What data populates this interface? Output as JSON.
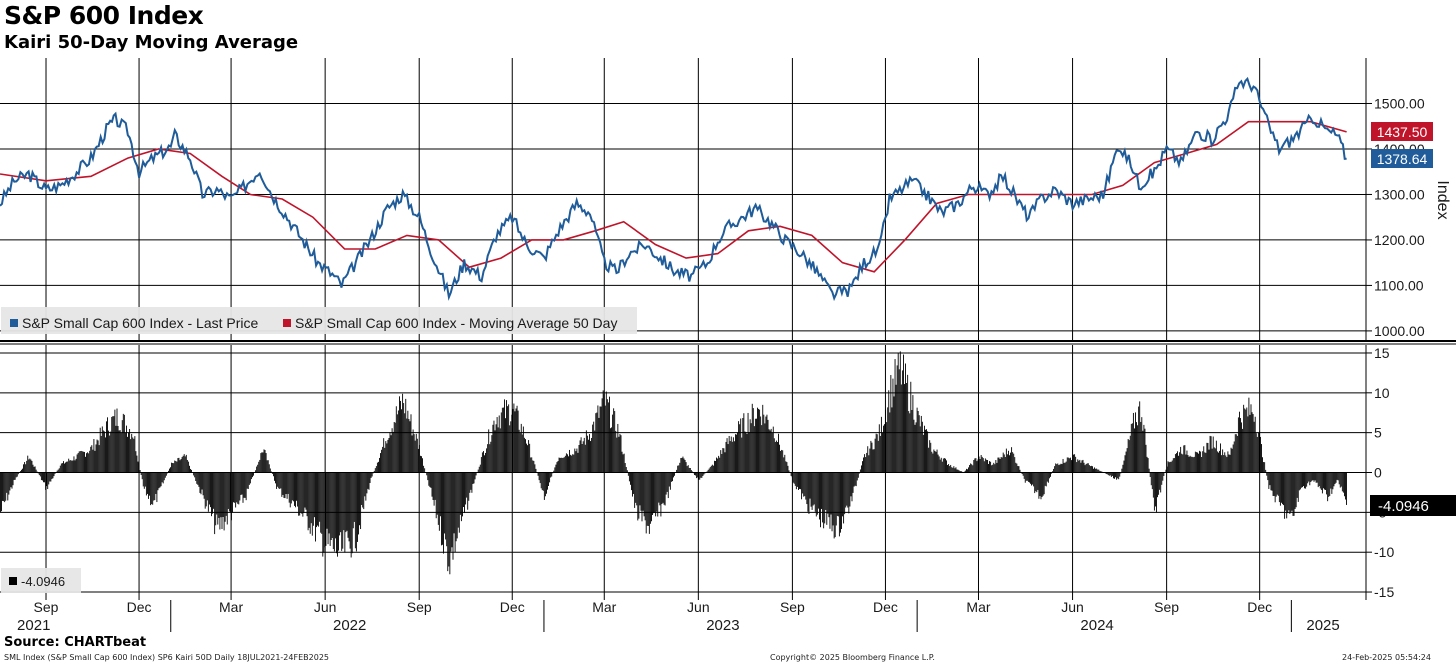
{
  "header": {
    "title": "S&P 600 Index",
    "subtitle": "Kairi 50-Day Moving Average"
  },
  "footer": {
    "source": "Source: CHARTbeat",
    "description": "SML Index (S&P Small Cap 600 Index) SP6 Kairi 50D  Daily 18JUL2021-24FEB2025",
    "copyright": "Copyright© 2025 Bloomberg Finance L.P.",
    "timestamp": "24-Feb-2025 05:54:24"
  },
  "colors": {
    "price": "#1f5c99",
    "moving_average": "#c0142a",
    "kairi": "#000000",
    "grid": "#000000"
  },
  "chart_data": [
    {
      "type": "line",
      "ylabel": "Index",
      "ylim": [
        980,
        1600
      ],
      "yticks": [
        1000,
        1100,
        1200,
        1300,
        1400,
        1500
      ],
      "ytick_labels": [
        "1000.00",
        "1100.00",
        "1200.00",
        "1300.00",
        "1400.00",
        "1500.00"
      ],
      "grid": true,
      "legend_position": "bottom-left",
      "last_value_labels": [
        "1437.50",
        "1378.64"
      ],
      "x_month_labels": [
        "Sep",
        "Dec",
        "Mar",
        "Jun",
        "Sep",
        "Dec",
        "Mar",
        "Jun",
        "Sep",
        "Dec",
        "Mar",
        "Jun",
        "Sep",
        "Dec"
      ],
      "x_year_labels": [
        "2021",
        "2022",
        "2023",
        "2024",
        "2025"
      ],
      "series": [
        {
          "name": "S&P Small Cap 600 Index - Last Price",
          "x": [
            "2021-07-18",
            "2021-08-01",
            "2021-08-15",
            "2021-09-01",
            "2021-09-15",
            "2021-10-01",
            "2021-10-15",
            "2021-11-01",
            "2021-11-08",
            "2021-11-20",
            "2021-12-01",
            "2021-12-15",
            "2022-01-01",
            "2022-01-05",
            "2022-01-20",
            "2022-02-01",
            "2022-02-15",
            "2022-03-01",
            "2022-03-15",
            "2022-03-29",
            "2022-04-10",
            "2022-04-25",
            "2022-05-10",
            "2022-05-25",
            "2022-06-10",
            "2022-06-17",
            "2022-07-01",
            "2022-07-15",
            "2022-08-01",
            "2022-08-16",
            "2022-09-01",
            "2022-09-12",
            "2022-09-30",
            "2022-10-15",
            "2022-11-01",
            "2022-11-15",
            "2022-12-01",
            "2022-12-15",
            "2023-01-01",
            "2023-01-15",
            "2023-02-02",
            "2023-02-15",
            "2023-03-01",
            "2023-03-13",
            "2023-03-25",
            "2023-04-10",
            "2023-04-25",
            "2023-05-10",
            "2023-05-25",
            "2023-06-10",
            "2023-06-20",
            "2023-07-01",
            "2023-07-27",
            "2023-08-10",
            "2023-08-25",
            "2023-09-10",
            "2023-09-25",
            "2023-10-10",
            "2023-10-27",
            "2023-11-10",
            "2023-11-25",
            "2023-12-05",
            "2023-12-27",
            "2024-01-10",
            "2024-01-25",
            "2024-02-10",
            "2024-02-25",
            "2024-03-10",
            "2024-03-25",
            "2024-04-10",
            "2024-04-19",
            "2024-05-01",
            "2024-05-15",
            "2024-06-01",
            "2024-06-15",
            "2024-07-01",
            "2024-07-16",
            "2024-07-30",
            "2024-08-05",
            "2024-08-20",
            "2024-09-01",
            "2024-09-15",
            "2024-10-01",
            "2024-10-15",
            "2024-11-01",
            "2024-11-11",
            "2024-11-25",
            "2024-12-10",
            "2024-12-20",
            "2025-01-01",
            "2025-01-10",
            "2025-01-22",
            "2025-02-05",
            "2025-02-15",
            "2025-02-24"
          ],
          "values": [
            1280,
            1330,
            1345,
            1310,
            1320,
            1350,
            1380,
            1450,
            1465,
            1440,
            1350,
            1380,
            1405,
            1430,
            1380,
            1300,
            1310,
            1290,
            1320,
            1355,
            1300,
            1250,
            1200,
            1150,
            1120,
            1100,
            1150,
            1200,
            1270,
            1300,
            1250,
            1180,
            1080,
            1150,
            1120,
            1210,
            1250,
            1190,
            1160,
            1220,
            1280,
            1260,
            1150,
            1130,
            1170,
            1190,
            1160,
            1130,
            1120,
            1150,
            1200,
            1230,
            1270,
            1240,
            1200,
            1170,
            1130,
            1080,
            1090,
            1150,
            1180,
            1290,
            1330,
            1300,
            1260,
            1280,
            1320,
            1300,
            1340,
            1280,
            1250,
            1290,
            1310,
            1280,
            1290,
            1300,
            1410,
            1360,
            1320,
            1350,
            1400,
            1370,
            1440,
            1420,
            1480,
            1550,
            1540,
            1450,
            1400,
            1420,
            1440,
            1470,
            1440,
            1430,
            1378.64
          ]
        },
        {
          "name": "S&P Small Cap 600 Index - Moving Average 50 Day",
          "x": [
            "2021-07-18",
            "2021-09-01",
            "2021-10-15",
            "2021-11-20",
            "2021-12-20",
            "2022-01-20",
            "2022-02-20",
            "2022-03-20",
            "2022-04-20",
            "2022-05-20",
            "2022-06-20",
            "2022-07-20",
            "2022-08-20",
            "2022-09-20",
            "2022-10-20",
            "2022-11-20",
            "2022-12-20",
            "2023-01-20",
            "2023-02-20",
            "2023-03-20",
            "2023-04-20",
            "2023-05-20",
            "2023-06-20",
            "2023-07-20",
            "2023-08-20",
            "2023-09-20",
            "2023-10-20",
            "2023-11-20",
            "2023-12-20",
            "2024-01-20",
            "2024-02-20",
            "2024-03-20",
            "2024-04-20",
            "2024-05-20",
            "2024-06-20",
            "2024-07-20",
            "2024-08-20",
            "2024-09-20",
            "2024-10-20",
            "2024-11-20",
            "2024-12-20",
            "2025-01-20",
            "2025-02-24"
          ],
          "values": [
            1345,
            1330,
            1340,
            1380,
            1400,
            1390,
            1340,
            1300,
            1290,
            1250,
            1180,
            1180,
            1210,
            1200,
            1140,
            1160,
            1200,
            1200,
            1220,
            1240,
            1190,
            1160,
            1170,
            1220,
            1230,
            1210,
            1150,
            1130,
            1200,
            1280,
            1300,
            1300,
            1300,
            1300,
            1300,
            1320,
            1370,
            1390,
            1410,
            1460,
            1460,
            1460,
            1437.5
          ]
        }
      ]
    },
    {
      "type": "bar",
      "ylim": [
        -16,
        16
      ],
      "yticks": [
        -15,
        -10,
        -5,
        0,
        5,
        10,
        15
      ],
      "ytick_labels": [
        "-15",
        "-10",
        "-5",
        "0",
        "5",
        "10",
        "15"
      ],
      "grid": true,
      "legend_position": "bottom-left",
      "last_value_label": "-4.0946",
      "series": [
        {
          "name": "-4.0946",
          "x": [
            "2021-07-18",
            "2021-08-01",
            "2021-08-15",
            "2021-09-01",
            "2021-09-15",
            "2021-10-01",
            "2021-10-15",
            "2021-11-01",
            "2021-11-10",
            "2021-11-25",
            "2021-12-05",
            "2021-12-15",
            "2022-01-01",
            "2022-01-15",
            "2022-02-01",
            "2022-02-15",
            "2022-03-01",
            "2022-03-15",
            "2022-04-01",
            "2022-04-15",
            "2022-05-01",
            "2022-05-15",
            "2022-06-01",
            "2022-06-16",
            "2022-07-01",
            "2022-07-15",
            "2022-08-01",
            "2022-08-16",
            "2022-09-01",
            "2022-09-15",
            "2022-09-30",
            "2022-10-15",
            "2022-11-01",
            "2022-11-15",
            "2022-12-01",
            "2022-12-15",
            "2023-01-01",
            "2023-01-15",
            "2023-02-02",
            "2023-02-15",
            "2023-03-01",
            "2023-03-15",
            "2023-04-01",
            "2023-04-15",
            "2023-05-01",
            "2023-05-15",
            "2023-06-01",
            "2023-06-15",
            "2023-07-01",
            "2023-07-15",
            "2023-07-31",
            "2023-08-15",
            "2023-09-01",
            "2023-09-15",
            "2023-10-01",
            "2023-10-15",
            "2023-10-27",
            "2023-11-10",
            "2023-11-25",
            "2023-12-05",
            "2023-12-15",
            "2024-01-01",
            "2024-01-15",
            "2024-02-01",
            "2024-02-15",
            "2024-03-01",
            "2024-03-15",
            "2024-04-01",
            "2024-04-15",
            "2024-05-01",
            "2024-05-15",
            "2024-06-01",
            "2024-06-15",
            "2024-07-01",
            "2024-07-16",
            "2024-08-01",
            "2024-08-07",
            "2024-08-20",
            "2024-09-01",
            "2024-09-15",
            "2024-10-01",
            "2024-10-15",
            "2024-11-01",
            "2024-11-11",
            "2024-11-25",
            "2024-12-10",
            "2024-12-20",
            "2025-01-01",
            "2025-01-10",
            "2025-01-22",
            "2025-02-05",
            "2025-02-15",
            "2025-02-24"
          ],
          "values": [
            -5,
            -1,
            2,
            -2,
            1,
            2,
            3,
            6,
            7,
            5,
            -2,
            -4,
            1,
            2,
            -3,
            -7,
            -5,
            -3,
            3,
            -2,
            -4,
            -6,
            -9,
            -10,
            -8,
            -1,
            5,
            9,
            3,
            -4,
            -11,
            -5,
            2,
            7,
            8,
            4,
            -3,
            2,
            3,
            5,
            9,
            5,
            -5,
            -7,
            -3,
            2,
            -1,
            1,
            4,
            6,
            8,
            5,
            -1,
            -4,
            -6,
            -7,
            -4,
            2,
            5,
            10,
            13,
            7,
            3,
            1,
            0,
            2,
            1,
            3,
            -1,
            -3,
            1,
            2,
            1,
            0,
            -1,
            7,
            8,
            -5,
            1,
            3,
            2,
            4,
            2,
            7,
            8,
            -2,
            -4,
            -6,
            -2,
            -1,
            -3,
            -1,
            -4.0946
          ]
        }
      ]
    }
  ]
}
